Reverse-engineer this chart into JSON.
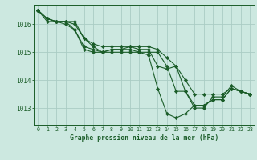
{
  "background_color": "#cce8e0",
  "grid_color": "#aaccc4",
  "line_color": "#1a5c28",
  "marker_color": "#1a5c28",
  "xlabel": "Graphe pression niveau de la mer (hPa)",
  "xlim": [
    -0.5,
    23.5
  ],
  "ylim": [
    1012.4,
    1016.7
  ],
  "yticks": [
    1013,
    1014,
    1015,
    1016
  ],
  "xticks": [
    0,
    1,
    2,
    3,
    4,
    5,
    6,
    7,
    8,
    9,
    10,
    11,
    12,
    13,
    14,
    15,
    16,
    17,
    18,
    19,
    20,
    21,
    22,
    23
  ],
  "series": [
    [
      1016.5,
      1016.2,
      1016.1,
      1016.1,
      1015.8,
      1015.1,
      1015.0,
      1015.0,
      1015.1,
      1015.1,
      1015.1,
      1015.0,
      1015.0,
      1015.0,
      1014.5,
      1013.6,
      1013.6,
      1013.1,
      1013.1,
      1013.3,
      1013.3,
      1013.7,
      1013.6,
      1013.5
    ],
    [
      1016.5,
      1016.2,
      1016.1,
      1016.1,
      1016.0,
      1015.5,
      1015.3,
      1015.2,
      1015.2,
      1015.2,
      1015.2,
      1015.1,
      1015.1,
      1014.5,
      1014.4,
      1014.5,
      1014.0,
      1013.5,
      1013.5,
      1013.5,
      1013.5,
      1013.7,
      1013.6,
      1013.5
    ],
    [
      1016.5,
      1016.1,
      1016.1,
      1016.0,
      1015.8,
      1015.2,
      1015.1,
      1015.0,
      1015.1,
      1015.1,
      1015.2,
      1015.2,
      1015.2,
      1015.1,
      1014.8,
      1014.5,
      1013.6,
      1013.0,
      1013.0,
      1013.4,
      1013.4,
      1013.8,
      1013.6,
      1013.5
    ],
    [
      1016.5,
      1016.2,
      1016.1,
      1016.1,
      1016.1,
      1015.5,
      1015.2,
      1015.0,
      1015.0,
      1015.0,
      1015.0,
      1015.0,
      1014.9,
      1013.7,
      1012.8,
      1012.65,
      1012.8,
      1013.1,
      1013.1,
      1013.3,
      1013.3,
      1013.7,
      1013.6,
      1013.5
    ]
  ]
}
